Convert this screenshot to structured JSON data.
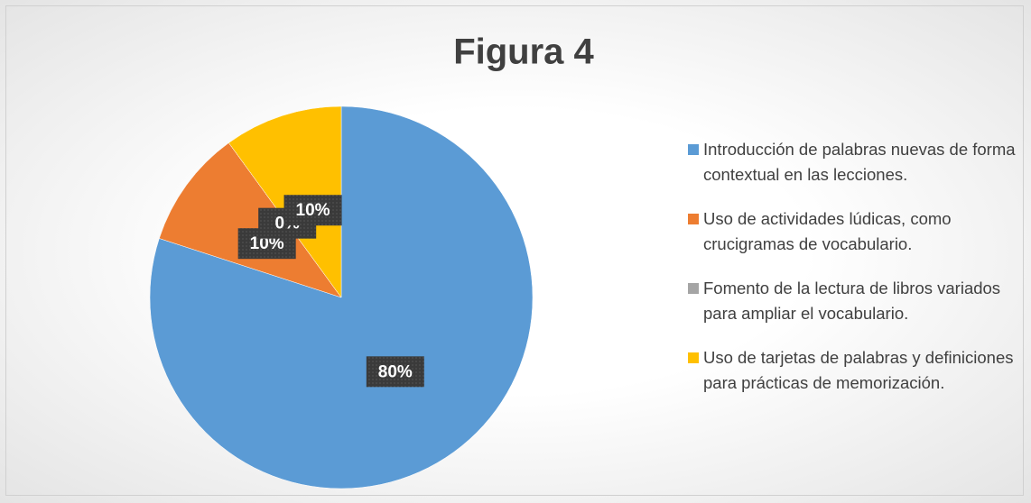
{
  "chart_data": {
    "type": "pie",
    "title": "Figura 4",
    "categories": [
      "Introducción de palabras nuevas de forma contextual en las lecciones.",
      "Uso de actividades lúdicas, como crucigramas de vocabulario.",
      "Fomento de la lectura de libros variados para ampliar el vocabulario.",
      "Uso de tarjetas de palabras y definiciones para prácticas de memorización."
    ],
    "values": [
      80,
      10,
      0,
      10
    ],
    "value_labels": [
      "80%",
      "10%",
      "0%",
      "10%"
    ],
    "colors": [
      "#5b9bd5",
      "#ed7d31",
      "#a5a5a5",
      "#ffc000"
    ],
    "legend": "right"
  }
}
